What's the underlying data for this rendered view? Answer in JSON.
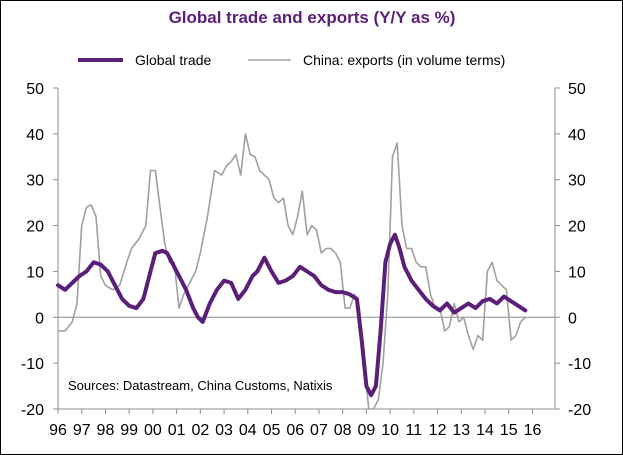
{
  "chart_data": {
    "type": "line",
    "title": "Global trade and exports (Y/Y as %)",
    "source": "Sources: Datastream, China Customs, Natixis",
    "ylim": [
      -20,
      50
    ],
    "yticks": [
      50,
      40,
      30,
      20,
      10,
      0,
      -10,
      -20
    ],
    "ytick_labels": [
      "50",
      "40",
      "30",
      "20",
      "10",
      "0",
      "-10",
      "-20"
    ],
    "xlim": [
      1996,
      2016.95
    ],
    "xtick_labels": [
      "96",
      "97",
      "98",
      "99",
      "00",
      "01",
      "02",
      "03",
      "04",
      "05",
      "06",
      "07",
      "08",
      "09",
      "10",
      "11",
      "12",
      "13",
      "14",
      "15",
      "16"
    ],
    "xtick_positions": [
      1996,
      1997,
      1998,
      1999,
      2000,
      2001,
      2002,
      2003,
      2004,
      2005,
      2006,
      2007,
      2008,
      2009,
      2010,
      2011,
      2012,
      2013,
      2014,
      2015,
      2016
    ],
    "colors": {
      "global_trade": "#5b1f7a",
      "china_exports": "#a0a0a0",
      "title": "#5b1f7a",
      "zero_line": "#8e8e8e"
    },
    "series": [
      {
        "name": "Global trade",
        "x": [
          1996.0,
          1996.3,
          1996.6,
          1996.9,
          1997.2,
          1997.5,
          1997.8,
          1998.1,
          1998.4,
          1998.7,
          1999.0,
          1999.3,
          1999.6,
          1999.9,
          2000.1,
          2000.4,
          2000.6,
          2000.8,
          2001.1,
          2001.4,
          2001.7,
          2001.9,
          2002.1,
          2002.4,
          2002.7,
          2003.0,
          2003.3,
          2003.6,
          2003.9,
          2004.2,
          2004.4,
          2004.7,
          2005.0,
          2005.3,
          2005.6,
          2005.9,
          2006.2,
          2006.5,
          2006.8,
          2007.1,
          2007.4,
          2007.7,
          2008.0,
          2008.3,
          2008.6,
          2008.8,
          2009.0,
          2009.2,
          2009.4,
          2009.6,
          2009.8,
          2010.0,
          2010.2,
          2010.4,
          2010.6,
          2010.9,
          2011.2,
          2011.5,
          2011.8,
          2012.1,
          2012.4,
          2012.7,
          2013.0,
          2013.3,
          2013.6,
          2013.9,
          2014.2,
          2014.5,
          2014.8,
          2015.1,
          2015.4,
          2015.7
        ],
        "values": [
          7,
          6,
          7.5,
          9,
          10,
          12,
          11.5,
          10,
          7,
          4,
          2.5,
          2,
          4,
          10,
          14,
          14.5,
          14,
          12,
          9,
          6,
          2,
          0,
          -1,
          3,
          6,
          8,
          7.5,
          4,
          6,
          9,
          10,
          13,
          10,
          7.5,
          8,
          9,
          11,
          10,
          9,
          7,
          6,
          5.5,
          5.5,
          5,
          4,
          -5,
          -15,
          -17,
          -15,
          -3,
          12,
          16,
          18,
          15,
          11,
          8,
          6,
          4,
          2.5,
          1.5,
          3,
          1,
          2,
          3,
          2,
          3.5,
          4,
          3,
          4.5,
          3.5,
          2.5,
          1.5
        ]
      },
      {
        "name": "China: exports (in volume terms)",
        "x": [
          1996.0,
          1996.3,
          1996.6,
          1996.8,
          1997.0,
          1997.2,
          1997.4,
          1997.6,
          1997.8,
          1998.0,
          1998.3,
          1998.6,
          1998.9,
          1999.1,
          1999.4,
          1999.7,
          1999.9,
          2000.1,
          2000.3,
          2000.5,
          2000.7,
          2000.9,
          2001.1,
          2001.3,
          2001.5,
          2001.8,
          2002.0,
          2002.3,
          2002.6,
          2002.9,
          2003.1,
          2003.3,
          2003.5,
          2003.7,
          2003.9,
          2004.1,
          2004.3,
          2004.5,
          2004.7,
          2004.9,
          2005.1,
          2005.3,
          2005.5,
          2005.7,
          2005.9,
          2006.1,
          2006.3,
          2006.5,
          2006.7,
          2006.9,
          2007.1,
          2007.3,
          2007.5,
          2007.7,
          2007.9,
          2008.1,
          2008.3,
          2008.5,
          2008.7,
          2008.9,
          2009.1,
          2009.3,
          2009.5,
          2009.7,
          2009.9,
          2010.1,
          2010.3,
          2010.5,
          2010.7,
          2010.9,
          2011.1,
          2011.3,
          2011.5,
          2011.7,
          2011.9,
          2012.1,
          2012.3,
          2012.5,
          2012.7,
          2012.9,
          2013.1,
          2013.3,
          2013.5,
          2013.7,
          2013.9,
          2014.1,
          2014.3,
          2014.5,
          2014.7,
          2014.9,
          2015.1,
          2015.3,
          2015.5,
          2015.7
        ],
        "values": [
          -3,
          -3,
          -1,
          3,
          20,
          24,
          24.5,
          22,
          9,
          7,
          6,
          7,
          12,
          15,
          17,
          20,
          32,
          32,
          24,
          16,
          12,
          12,
          2,
          5,
          7,
          10,
          14,
          22,
          32,
          31,
          33,
          34,
          35.5,
          31,
          40,
          35.5,
          35,
          32,
          31,
          30,
          26,
          25,
          26,
          20,
          18,
          22,
          27.5,
          18,
          20,
          19,
          14,
          15,
          15,
          14,
          12,
          2,
          2,
          5,
          2,
          -10,
          -20,
          -20,
          -18,
          -10,
          5,
          35,
          38,
          20,
          15,
          15,
          12,
          11,
          11,
          5,
          2,
          2,
          -3,
          -2,
          3,
          -1,
          0,
          -4,
          -7,
          -4,
          -5,
          10,
          12,
          8,
          7,
          6,
          -5,
          -4,
          -1,
          0
        ]
      }
    ]
  },
  "legend": {
    "global_trade": "Global trade",
    "china_exports": "China: exports (in volume terms)"
  }
}
